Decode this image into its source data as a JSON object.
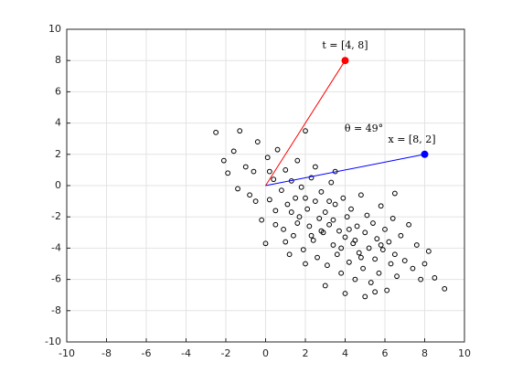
{
  "chart_data": {
    "type": "scatter",
    "points": [
      [
        -2.5,
        3.4
      ],
      [
        -2.1,
        1.6
      ],
      [
        -1.9,
        0.8
      ],
      [
        -1.3,
        3.5
      ],
      [
        -1.6,
        2.2
      ],
      [
        -1.4,
        -0.2
      ],
      [
        -1.0,
        1.2
      ],
      [
        -0.8,
        -0.6
      ],
      [
        -0.6,
        0.9
      ],
      [
        -0.4,
        2.8
      ],
      [
        -0.2,
        -2.2
      ],
      [
        0.0,
        -3.7
      ],
      [
        0.1,
        1.8
      ],
      [
        0.2,
        -0.9
      ],
      [
        0.4,
        0.4
      ],
      [
        0.5,
        -1.6
      ],
      [
        0.6,
        2.3
      ],
      [
        0.8,
        -0.3
      ],
      [
        0.9,
        -2.8
      ],
      [
        1.0,
        1.0
      ],
      [
        1.1,
        -1.2
      ],
      [
        1.3,
        0.3
      ],
      [
        1.4,
        -3.2
      ],
      [
        1.5,
        -0.8
      ],
      [
        1.6,
        1.6
      ],
      [
        1.7,
        -2.0
      ],
      [
        1.8,
        -0.1
      ],
      [
        1.9,
        -4.1
      ],
      [
        2.0,
        3.5
      ],
      [
        2.1,
        -1.5
      ],
      [
        2.2,
        -2.6
      ],
      [
        2.3,
        0.5
      ],
      [
        2.4,
        -3.5
      ],
      [
        2.5,
        -1.0
      ],
      [
        2.6,
        -4.6
      ],
      [
        2.7,
        -2.1
      ],
      [
        2.8,
        -0.4
      ],
      [
        2.9,
        -3.0
      ],
      [
        3.0,
        -1.7
      ],
      [
        3.1,
        -5.1
      ],
      [
        3.2,
        -2.5
      ],
      [
        3.3,
        0.2
      ],
      [
        3.4,
        -3.8
      ],
      [
        3.5,
        -1.2
      ],
      [
        3.6,
        -4.4
      ],
      [
        3.7,
        -2.9
      ],
      [
        3.8,
        -5.6
      ],
      [
        3.9,
        -0.8
      ],
      [
        4.0,
        -3.3
      ],
      [
        4.1,
        -2.0
      ],
      [
        4.2,
        -4.9
      ],
      [
        4.3,
        -1.5
      ],
      [
        4.4,
        -3.7
      ],
      [
        4.5,
        -6.0
      ],
      [
        4.6,
        -2.6
      ],
      [
        4.7,
        -4.3
      ],
      [
        4.8,
        -0.6
      ],
      [
        4.9,
        -5.3
      ],
      [
        5.0,
        -3.0
      ],
      [
        5.1,
        -1.9
      ],
      [
        5.2,
        -4.0
      ],
      [
        5.3,
        -6.2
      ],
      [
        5.4,
        -2.4
      ],
      [
        5.5,
        -4.7
      ],
      [
        5.6,
        -3.4
      ],
      [
        5.7,
        -5.6
      ],
      [
        5.8,
        -1.3
      ],
      [
        5.9,
        -4.1
      ],
      [
        6.0,
        -2.8
      ],
      [
        6.1,
        -6.7
      ],
      [
        6.2,
        -3.6
      ],
      [
        6.3,
        -5.0
      ],
      [
        6.4,
        -2.1
      ],
      [
        6.5,
        -4.4
      ],
      [
        6.6,
        -5.8
      ],
      [
        6.8,
        -3.2
      ],
      [
        7.0,
        -4.8
      ],
      [
        7.2,
        -2.5
      ],
      [
        7.4,
        -5.3
      ],
      [
        7.6,
        -3.8
      ],
      [
        7.8,
        -6.0
      ],
      [
        8.0,
        -5.0
      ],
      [
        8.2,
        -4.2
      ],
      [
        8.5,
        -5.9
      ],
      [
        9.0,
        -6.6
      ],
      [
        1.2,
        -4.4
      ],
      [
        2.0,
        -5.0
      ],
      [
        3.0,
        -6.4
      ],
      [
        3.5,
        0.9
      ],
      [
        1.0,
        -3.6
      ],
      [
        0.5,
        -2.5
      ],
      [
        2.5,
        1.2
      ],
      [
        4.0,
        -6.9
      ],
      [
        5.0,
        -7.1
      ],
      [
        6.5,
        -0.5
      ],
      [
        5.5,
        -6.8
      ],
      [
        -0.5,
        -1.0
      ],
      [
        0.2,
        0.9
      ],
      [
        3.2,
        -1.0
      ],
      [
        2.3,
        -3.2
      ],
      [
        4.5,
        -3.5
      ],
      [
        3.8,
        -4.0
      ],
      [
        1.6,
        -2.4
      ],
      [
        2.8,
        -2.9
      ],
      [
        4.2,
        -2.8
      ],
      [
        5.8,
        -3.8
      ],
      [
        1.3,
        -1.7
      ],
      [
        3.4,
        -2.2
      ],
      [
        2.0,
        -0.8
      ],
      [
        4.8,
        -4.6
      ]
    ],
    "point_color": "#000000",
    "vectors": [
      {
        "label": "t = [4, 8]",
        "x": 4,
        "y": 8,
        "color": "#ff0000"
      },
      {
        "label": "x = [8, 2]",
        "x": 8,
        "y": 2,
        "color": "#0000ff"
      }
    ],
    "angle_label": "θ = 49°",
    "xlim": [
      -10,
      10
    ],
    "ylim": [
      -10,
      10
    ],
    "xticks": [
      -10,
      -8,
      -6,
      -4,
      -2,
      0,
      2,
      4,
      6,
      8,
      10
    ],
    "yticks": [
      -10,
      -8,
      -6,
      -4,
      -2,
      0,
      2,
      4,
      6,
      8,
      10
    ],
    "grid": true
  }
}
